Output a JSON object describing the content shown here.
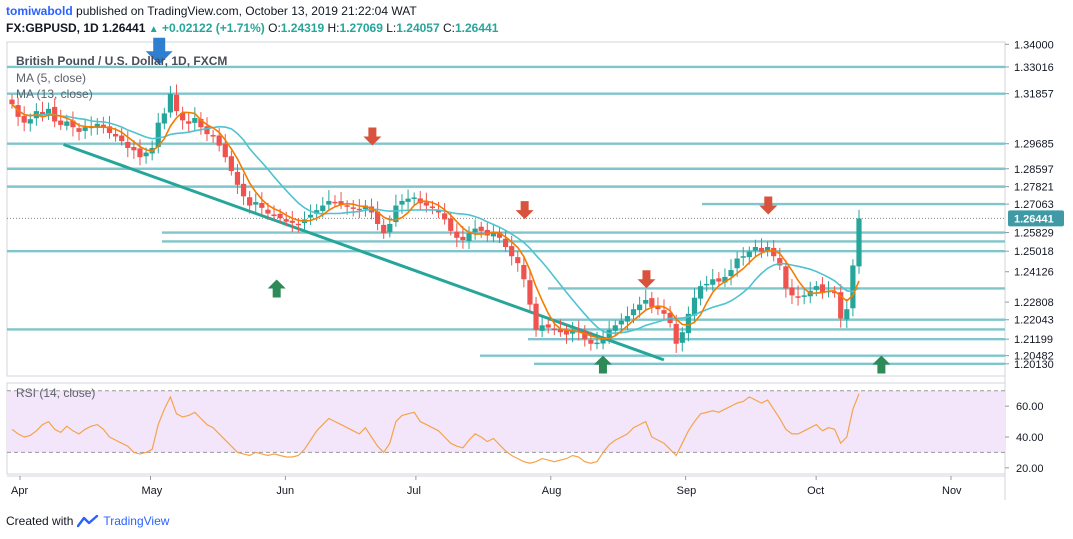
{
  "header": {
    "author": "tomiwabold",
    "published_text": "published on TradingView.com, October 13, 2019 21:22:04 WAT",
    "symbol": "FX:GBPUSD, 1D",
    "last_price": "1.26441",
    "change": "+0.02122 (+1.71%)",
    "o_label": "O:",
    "o_value": "1.24319",
    "h_label": "H:",
    "h_value": "1.27069",
    "l_label": "L:",
    "l_value": "1.24057",
    "c_label": "C:",
    "c_value": "1.26441"
  },
  "pane_title": "British Pound / U.S. Dollar, 1D, FXCM",
  "legend": {
    "ma5": "MA (5, close)",
    "ma13": "MA (13, close)",
    "rsi": "RSI (14, close)"
  },
  "footer": {
    "created_with": "Created with",
    "brand": "TradingView"
  },
  "colors": {
    "up": "#26a69a",
    "down": "#ef5350",
    "hline": "#7ec6cc",
    "trend": "#26a69a",
    "ma5": "#f57c00",
    "ma13": "#4fc3cf",
    "rsi_line": "#f5a34c",
    "rsi_band": "#f3e6fb",
    "arrow_down_red": "#d9533c",
    "arrow_up_green": "#2e8b57",
    "arrow_down_blue": "#2f7fd1",
    "price_tag": "#3f9aa6",
    "axis_text": "#131722"
  },
  "chart_data": {
    "type": "candlestick",
    "title": "British Pound / U.S. Dollar, 1D, FXCM",
    "x_labels": [
      "Apr",
      "May",
      "Jun",
      "Jul",
      "Aug",
      "Sep",
      "Oct",
      "Nov"
    ],
    "y_ticks": [
      "1.34000",
      "1.33016",
      "1.31857",
      "1.29685",
      "1.28597",
      "1.27821",
      "1.27063",
      "1.26441",
      "1.25829",
      "1.25018",
      "1.24126",
      "1.22808",
      "1.22043",
      "1.21199",
      "1.20482",
      "1.20130"
    ],
    "current_price": "1.26441",
    "ylim": [
      1.196,
      1.341
    ],
    "horizontal_levels": [
      1.33016,
      1.31857,
      1.29685,
      1.28597,
      1.27821,
      1.27063,
      1.2544,
      1.25829,
      1.25018,
      1.234,
      1.22043,
      1.2162,
      1.21199,
      1.20482,
      1.2013
    ],
    "trendline": [
      {
        "x": "2019-04-11",
        "y": 1.2965
      },
      {
        "x": "2019-08-27",
        "y": 1.203
      }
    ],
    "series": [
      {
        "name": "GBPUSD",
        "values": [
          1.314,
          1.3085,
          1.306,
          1.3075,
          1.311,
          1.3095,
          1.312,
          1.3065,
          1.305,
          1.3065,
          1.304,
          1.302,
          1.304,
          1.3045,
          1.3055,
          1.304,
          1.3015,
          1.3,
          1.298,
          1.295,
          1.294,
          1.291,
          1.293,
          1.295,
          1.306,
          1.31,
          1.3185,
          1.311,
          1.307,
          1.3055,
          1.308,
          1.304,
          1.301,
          1.3,
          1.296,
          1.291,
          1.285,
          1.279,
          1.274,
          1.27,
          1.2715,
          1.269,
          1.2665,
          1.266,
          1.2645,
          1.263,
          1.2625,
          1.262,
          1.264,
          1.266,
          1.268,
          1.27,
          1.272,
          1.2715,
          1.2705,
          1.27,
          1.269,
          1.268,
          1.27,
          1.267,
          1.262,
          1.258,
          1.262,
          1.27,
          1.272,
          1.273,
          1.2735,
          1.271,
          1.27,
          1.269,
          1.267,
          1.264,
          1.259,
          1.256,
          1.255,
          1.258,
          1.26,
          1.259,
          1.257,
          1.258,
          1.256,
          1.252,
          1.248,
          1.245,
          1.238,
          1.227,
          1.216,
          1.218,
          1.217,
          1.216,
          1.215,
          1.214,
          1.216,
          1.215,
          1.212,
          1.21,
          1.2105,
          1.213,
          1.216,
          1.218,
          1.22,
          1.222,
          1.225,
          1.227,
          1.229,
          1.226,
          1.225,
          1.223,
          1.219,
          1.21,
          1.215,
          1.223,
          1.23,
          1.235,
          1.236,
          1.238,
          1.237,
          1.239,
          1.242,
          1.247,
          1.248,
          1.25,
          1.252,
          1.25,
          1.252,
          1.248,
          1.244,
          1.234,
          1.231,
          1.23,
          1.231,
          1.233,
          1.235,
          1.232,
          1.233,
          1.232,
          1.221,
          1.225,
          1.244,
          1.2644
        ]
      },
      {
        "name": "MA (5, close)",
        "values": []
      },
      {
        "name": "MA (13, close)",
        "values": []
      }
    ],
    "rsi": {
      "name": "RSI (14, close)",
      "y_ticks": [
        "60.00",
        "40.00",
        "20.00"
      ],
      "band": [
        30,
        70
      ],
      "ylim": [
        16,
        75
      ],
      "values": [
        45,
        42,
        40,
        41,
        44,
        48,
        50,
        45,
        43,
        47,
        44,
        42,
        45,
        47,
        48,
        45,
        40,
        38,
        36,
        34,
        30,
        29,
        30,
        32,
        48,
        58,
        66,
        55,
        53,
        54,
        56,
        52,
        48,
        46,
        42,
        38,
        34,
        30,
        29,
        28,
        30,
        29,
        28,
        29,
        28,
        27,
        27,
        28,
        32,
        38,
        44,
        48,
        52,
        50,
        48,
        46,
        44,
        42,
        46,
        40,
        34,
        30,
        36,
        50,
        54,
        55,
        56,
        50,
        48,
        46,
        44,
        40,
        36,
        34,
        33,
        38,
        42,
        40,
        37,
        39,
        35,
        31,
        28,
        26,
        24,
        23,
        24,
        26,
        25,
        24,
        25,
        26,
        28,
        27,
        24,
        23,
        24,
        30,
        35,
        38,
        40,
        42,
        46,
        48,
        50,
        40,
        38,
        36,
        32,
        28,
        36,
        44,
        50,
        55,
        56,
        57,
        56,
        58,
        60,
        62,
        63,
        66,
        64,
        62,
        64,
        58,
        52,
        45,
        42,
        42,
        44,
        46,
        48,
        44,
        46,
        45,
        36,
        40,
        58,
        68
      ]
    },
    "markers": [
      {
        "type": "arrow-down",
        "color": "blue",
        "x": "2019-05-03",
        "y": 1.337
      },
      {
        "type": "arrow-down",
        "color": "red",
        "x": "2019-06-21",
        "y": 1.3
      },
      {
        "type": "arrow-down",
        "color": "red",
        "x": "2019-07-26",
        "y": 1.268
      },
      {
        "type": "arrow-down",
        "color": "red",
        "x": "2019-08-23",
        "y": 1.238
      },
      {
        "type": "arrow-down",
        "color": "red",
        "x": "2019-09-20",
        "y": 1.27
      },
      {
        "type": "arrow-up",
        "color": "green",
        "x": "2019-05-30",
        "y": 1.234
      },
      {
        "type": "arrow-up",
        "color": "green",
        "x": "2019-08-13",
        "y": 1.201
      },
      {
        "type": "arrow-up",
        "color": "green",
        "x": "2019-10-16",
        "y": 1.201
      }
    ]
  }
}
